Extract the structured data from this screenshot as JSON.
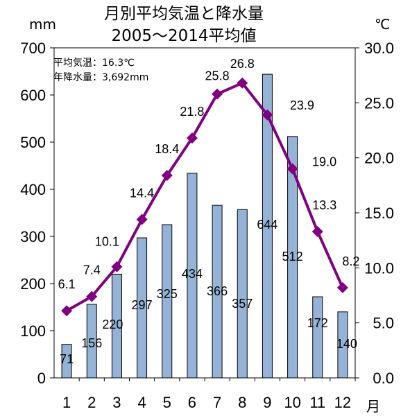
{
  "chart_data": {
    "type": "bar+line",
    "title_line1": "月別平均気温と降水量",
    "title_line2": "2005～2014平均値",
    "left_unit": "mm",
    "right_unit": "℃",
    "x_unit": "月",
    "note_line1": "平均気温：16.3℃",
    "note_line2": "年降水量：3,692mm",
    "categories": [
      "1",
      "2",
      "3",
      "4",
      "5",
      "6",
      "7",
      "8",
      "9",
      "10",
      "11",
      "12"
    ],
    "precip_labels": [
      "71",
      "156",
      "220",
      "297",
      "325",
      "434",
      "366",
      "357",
      "644",
      "512",
      "172",
      "140"
    ],
    "precip_values": [
      71,
      156,
      220,
      297,
      325,
      434,
      366,
      357,
      644,
      512,
      172,
      140
    ],
    "temp_labels": [
      "6.1",
      "7.4",
      "10.1",
      "14.4",
      "18.4",
      "21.8",
      "25.8",
      "26.8",
      "23.9",
      "19.0",
      "13.3",
      "8.2"
    ],
    "temp_values": [
      6.1,
      7.4,
      10.1,
      14.4,
      18.4,
      21.8,
      25.8,
      26.8,
      23.9,
      19.0,
      13.3,
      8.2
    ],
    "left_ticks": [
      "0",
      "100",
      "200",
      "300",
      "400",
      "500",
      "600",
      "700"
    ],
    "right_ticks": [
      "0.0",
      "5.0",
      "10.0",
      "15.0",
      "20.0",
      "25.0",
      "30.0"
    ],
    "ylim_left": [
      0,
      700
    ],
    "ylim_right": [
      0,
      30
    ],
    "colors": {
      "bar_fill": "#95B3D7",
      "bar_stroke": "#000000",
      "line": "#800080"
    }
  }
}
